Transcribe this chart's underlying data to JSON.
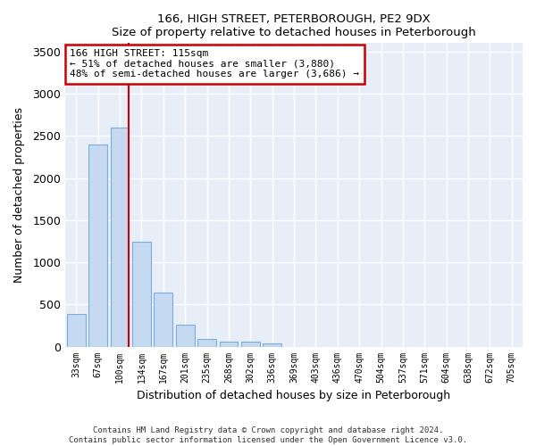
{
  "title1": "166, HIGH STREET, PETERBOROUGH, PE2 9DX",
  "title2": "Size of property relative to detached houses in Peterborough",
  "xlabel": "Distribution of detached houses by size in Peterborough",
  "ylabel": "Number of detached properties",
  "categories": [
    "33sqm",
    "67sqm",
    "100sqm",
    "134sqm",
    "167sqm",
    "201sqm",
    "235sqm",
    "268sqm",
    "302sqm",
    "336sqm",
    "369sqm",
    "403sqm",
    "436sqm",
    "470sqm",
    "504sqm",
    "537sqm",
    "571sqm",
    "604sqm",
    "638sqm",
    "672sqm",
    "705sqm"
  ],
  "values": [
    390,
    2400,
    2600,
    1240,
    640,
    255,
    90,
    55,
    55,
    40,
    0,
    0,
    0,
    0,
    0,
    0,
    0,
    0,
    0,
    0,
    0
  ],
  "bar_color": "#c5d9f0",
  "bar_edge_color": "#7aaddc",
  "background_color": "#e8eef8",
  "grid_color": "#ffffff",
  "vline_color": "#cc0000",
  "annotation_line1": "166 HIGH STREET: 115sqm",
  "annotation_line2": "← 51% of detached houses are smaller (3,880)",
  "annotation_line3": "48% of semi-detached houses are larger (3,686) →",
  "annotation_box_color": "#cc0000",
  "ylim": [
    0,
    3600
  ],
  "yticks": [
    0,
    500,
    1000,
    1500,
    2000,
    2500,
    3000,
    3500
  ],
  "footer1": "Contains HM Land Registry data © Crown copyright and database right 2024.",
  "footer2": "Contains public sector information licensed under the Open Government Licence v3.0."
}
